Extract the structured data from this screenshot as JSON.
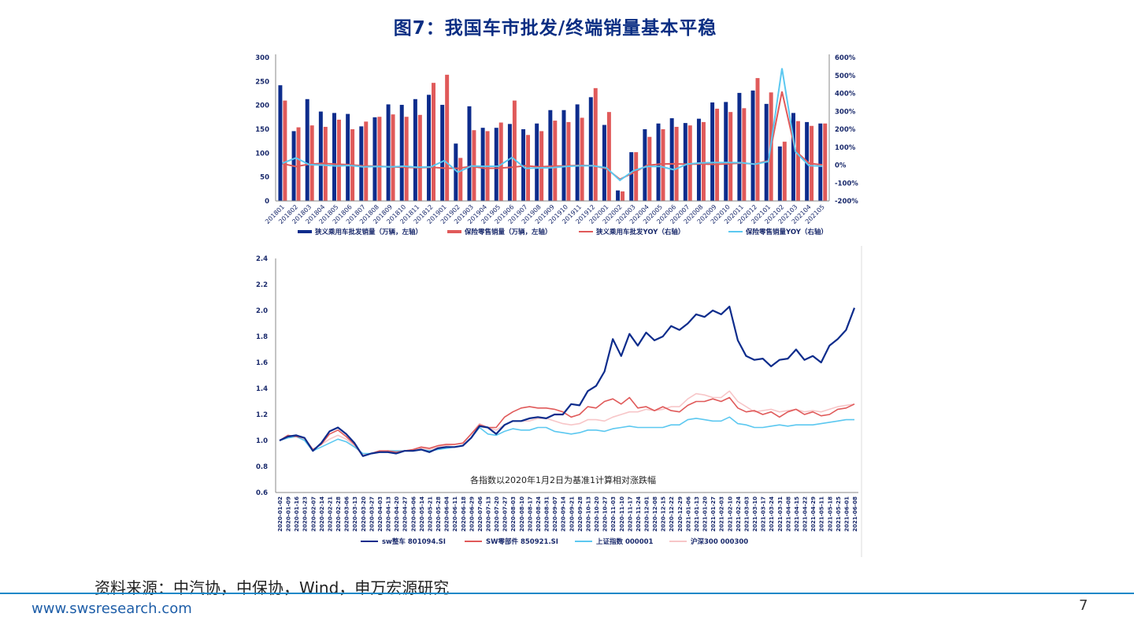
{
  "page": {
    "title": "图7：我国车市批发/终端销量基本平稳",
    "source": "资料来源：中汽协，中保协，Wind，申万宏源研究",
    "website": "www.swsresearch.com",
    "page_number": "7"
  },
  "chart_data": [
    {
      "type": "bar",
      "title": "",
      "categories": [
        "201801",
        "201802",
        "201803",
        "201804",
        "201805",
        "201806",
        "201807",
        "201808",
        "201809",
        "201810",
        "201811",
        "201812",
        "201901",
        "201902",
        "201903",
        "201904",
        "201905",
        "201906",
        "201907",
        "201908",
        "201909",
        "201910",
        "201911",
        "201912",
        "202001",
        "202002",
        "202003",
        "202004",
        "202005",
        "202006",
        "202007",
        "202008",
        "202009",
        "202010",
        "202011",
        "202012",
        "202101",
        "202102",
        "202103",
        "202104",
        "202105"
      ],
      "ylim_left": [
        0,
        300
      ],
      "yticks_left": [
        "0",
        "50",
        "100",
        "150",
        "200",
        "250",
        "300"
      ],
      "ylim_right": [
        -200,
        600
      ],
      "yticks_right": [
        "-200%",
        "-100%",
        "0%",
        "100%",
        "200%",
        "300%",
        "400%",
        "500%",
        "600%"
      ],
      "series": [
        {
          "name": "狭义乘用车批发销量（万辆，左轴）",
          "type": "bar",
          "axis": "left",
          "color": "#0d2c8c",
          "values": [
            242,
            146,
            213,
            187,
            184,
            182,
            156,
            175,
            202,
            201,
            213,
            222,
            201,
            120,
            198,
            153,
            153,
            161,
            150,
            162,
            190,
            190,
            202,
            217,
            159,
            22,
            102,
            150,
            162,
            173,
            163,
            172,
            206,
            207,
            226,
            231,
            203,
            114,
            184,
            165,
            162
          ]
        },
        {
          "name": "保险零售销量（万辆，左轴）",
          "type": "bar",
          "axis": "left",
          "color": "#e05a5a",
          "values": [
            210,
            154,
            158,
            155,
            170,
            150,
            166,
            176,
            181,
            176,
            180,
            247,
            264,
            90,
            148,
            146,
            164,
            210,
            138,
            146,
            168,
            165,
            174,
            236,
            186,
            20,
            102,
            134,
            150,
            155,
            158,
            165,
            193,
            186,
            194,
            257,
            227,
            124,
            167,
            157,
            162
          ]
        },
        {
          "name": "狭义乘用车批发YOY（右轴）",
          "type": "line",
          "axis": "right",
          "color": "#e05a5a",
          "values": [
            8,
            -8,
            5,
            10,
            5,
            2,
            -5,
            -6,
            -10,
            -12,
            -15,
            -12,
            -17,
            -18,
            -7,
            -18,
            -17,
            -12,
            -4,
            -10,
            -6,
            -5,
            -1,
            -3,
            -20,
            -79,
            -42,
            -2,
            6,
            7,
            5,
            6,
            4,
            7,
            11,
            6,
            25,
            410,
            80,
            10,
            1
          ]
        },
        {
          "name": "保险零售销量YOY（右轴）",
          "type": "line",
          "axis": "right",
          "color": "#5cc8f0",
          "values": [
            10,
            40,
            2,
            0,
            -5,
            -2,
            -10,
            -8,
            -10,
            -6,
            -12,
            -10,
            25,
            -40,
            -5,
            -7,
            -6,
            42,
            -18,
            -16,
            -14,
            -8,
            -4,
            -4,
            -15,
            -85,
            -31,
            -8,
            -8,
            -26,
            6,
            12,
            14,
            14,
            13,
            5,
            20,
            540,
            75,
            -3,
            -6
          ]
        }
      ]
    },
    {
      "type": "line",
      "title": "",
      "annotation": "各指数以2020年1月2日为基准1计算相对涨跌幅",
      "ylim": [
        0.6,
        2.4
      ],
      "yticks": [
        "0.6",
        "0.8",
        "1.0",
        "1.2",
        "1.4",
        "1.6",
        "1.8",
        "2.0",
        "2.2",
        "2.4"
      ],
      "x_tick_labels": [
        "2020-01-02",
        "2020-01-09",
        "2020-01-16",
        "2020-01-23",
        "2020-02-07",
        "2020-02-14",
        "2020-02-21",
        "2020-02-28",
        "2020-03-06",
        "2020-03-13",
        "2020-03-20",
        "2020-03-27",
        "2020-04-03",
        "2020-04-13",
        "2020-04-20",
        "2020-04-27",
        "2020-05-06",
        "2020-05-14",
        "2020-05-21",
        "2020-05-28",
        "2020-06-04",
        "2020-06-11",
        "2020-06-18",
        "2020-06-29",
        "2020-07-06",
        "2020-07-13",
        "2020-07-20",
        "2020-07-27",
        "2020-08-03",
        "2020-08-10",
        "2020-08-17",
        "2020-08-24",
        "2020-08-31",
        "2020-09-07",
        "2020-09-14",
        "2020-09-21",
        "2020-09-28",
        "2020-10-13",
        "2020-10-20",
        "2020-10-27",
        "2020-11-03",
        "2020-11-10",
        "2020-11-17",
        "2020-11-24",
        "2020-12-01",
        "2020-12-08",
        "2020-12-15",
        "2020-12-22",
        "2020-12-29",
        "2021-01-06",
        "2021-01-13",
        "2021-01-20",
        "2021-01-27",
        "2021-02-03",
        "2021-02-10",
        "2021-02-24",
        "2021-03-03",
        "2021-03-10",
        "2021-03-17",
        "2021-03-24",
        "2021-03-31",
        "2021-04-08",
        "2021-04-15",
        "2021-04-22",
        "2021-04-29",
        "2021-05-11",
        "2021-05-18",
        "2021-05-25",
        "2021-06-01",
        "2021-06-08"
      ],
      "series": [
        {
          "name": "sw整车  801094.SI",
          "color": "#0d2c8c",
          "width": 2.2,
          "values": [
            1.0,
            1.03,
            1.04,
            1.02,
            0.92,
            0.98,
            1.07,
            1.1,
            1.05,
            0.98,
            0.88,
            0.9,
            0.91,
            0.91,
            0.9,
            0.92,
            0.92,
            0.93,
            0.91,
            0.94,
            0.95,
            0.95,
            0.96,
            1.02,
            1.11,
            1.1,
            1.05,
            1.12,
            1.15,
            1.15,
            1.17,
            1.18,
            1.17,
            1.2,
            1.2,
            1.28,
            1.27,
            1.38,
            1.42,
            1.53,
            1.78,
            1.65,
            1.82,
            1.73,
            1.83,
            1.77,
            1.8,
            1.88,
            1.85,
            1.9,
            1.97,
            1.95,
            2.0,
            1.97,
            2.03,
            1.77,
            1.65,
            1.62,
            1.63,
            1.57,
            1.62,
            1.63,
            1.7,
            1.62,
            1.65,
            1.6,
            1.73,
            1.78,
            1.85,
            2.02
          ]
        },
        {
          "name": "SW零部件  850921.SI",
          "color": "#e05a5a",
          "width": 1.6,
          "values": [
            1.0,
            1.04,
            1.03,
            1.02,
            0.93,
            0.97,
            1.05,
            1.08,
            1.03,
            0.97,
            0.88,
            0.9,
            0.92,
            0.92,
            0.91,
            0.92,
            0.93,
            0.95,
            0.94,
            0.96,
            0.97,
            0.97,
            0.98,
            1.05,
            1.12,
            1.1,
            1.1,
            1.18,
            1.22,
            1.25,
            1.26,
            1.25,
            1.25,
            1.24,
            1.22,
            1.18,
            1.2,
            1.26,
            1.25,
            1.3,
            1.32,
            1.28,
            1.33,
            1.25,
            1.26,
            1.23,
            1.26,
            1.23,
            1.22,
            1.27,
            1.3,
            1.3,
            1.32,
            1.3,
            1.33,
            1.25,
            1.22,
            1.23,
            1.2,
            1.22,
            1.18,
            1.22,
            1.24,
            1.2,
            1.22,
            1.19,
            1.2,
            1.24,
            1.25,
            1.28
          ]
        },
        {
          "name": "上证指数  000001",
          "color": "#5cc8f0",
          "width": 1.6,
          "values": [
            1.0,
            1.02,
            1.03,
            1.0,
            0.92,
            0.95,
            0.98,
            1.01,
            0.99,
            0.95,
            0.9,
            0.9,
            0.91,
            0.92,
            0.92,
            0.92,
            0.92,
            0.93,
            0.92,
            0.93,
            0.94,
            0.95,
            0.96,
            1.02,
            1.1,
            1.05,
            1.04,
            1.07,
            1.09,
            1.08,
            1.08,
            1.1,
            1.1,
            1.07,
            1.06,
            1.05,
            1.06,
            1.08,
            1.08,
            1.07,
            1.09,
            1.1,
            1.11,
            1.1,
            1.1,
            1.1,
            1.1,
            1.12,
            1.12,
            1.16,
            1.17,
            1.16,
            1.15,
            1.15,
            1.18,
            1.13,
            1.12,
            1.1,
            1.1,
            1.11,
            1.12,
            1.11,
            1.12,
            1.12,
            1.12,
            1.13,
            1.14,
            1.15,
            1.16,
            1.16
          ]
        },
        {
          "name": "沪深300  000300",
          "color": "#f7c6c8",
          "width": 1.6,
          "values": [
            1.0,
            1.02,
            1.03,
            1.01,
            0.93,
            0.97,
            1.01,
            1.04,
            1.01,
            0.96,
            0.89,
            0.9,
            0.91,
            0.92,
            0.92,
            0.92,
            0.93,
            0.94,
            0.93,
            0.95,
            0.96,
            0.97,
            0.98,
            1.05,
            1.13,
            1.1,
            1.08,
            1.12,
            1.15,
            1.15,
            1.15,
            1.17,
            1.17,
            1.15,
            1.13,
            1.12,
            1.13,
            1.16,
            1.16,
            1.15,
            1.18,
            1.2,
            1.22,
            1.22,
            1.24,
            1.23,
            1.24,
            1.26,
            1.26,
            1.32,
            1.36,
            1.35,
            1.33,
            1.33,
            1.38,
            1.3,
            1.26,
            1.22,
            1.23,
            1.24,
            1.22,
            1.23,
            1.24,
            1.22,
            1.23,
            1.22,
            1.24,
            1.26,
            1.27,
            1.28
          ]
        }
      ]
    }
  ]
}
